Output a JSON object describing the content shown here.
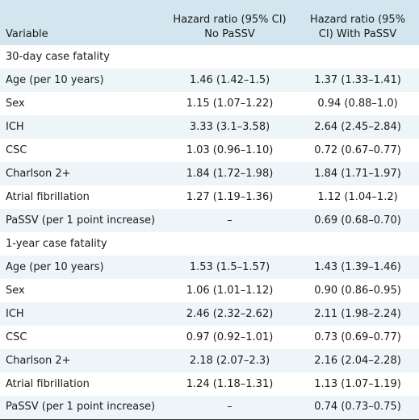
{
  "header": {
    "variable": "Variable",
    "col_no_passv": "Hazard ratio (95% CI) No PaSSV",
    "col_with_passv": "Hazard ratio (95% CI) With PaSSV"
  },
  "sections": [
    {
      "title": "30-day case fatality",
      "rows": [
        {
          "variable": "Age (per 10 years)",
          "no_passv": "1.46 (1.42–1.5)",
          "with_passv": "1.37 (1.33–1.41)"
        },
        {
          "variable": "Sex",
          "no_passv": "1.15 (1.07–1.22)",
          "with_passv": "0.94 (0.88–1.0)"
        },
        {
          "variable": "ICH",
          "no_passv": "3.33 (3.1–3.58)",
          "with_passv": "2.64 (2.45–2.84)"
        },
        {
          "variable": "CSC",
          "no_passv": "1.03 (0.96–1.10)",
          "with_passv": "0.72 (0.67–0.77)"
        },
        {
          "variable": "Charlson 2+",
          "no_passv": "1.84 (1.72–1.98)",
          "with_passv": "1.84 (1.71–1.97)"
        },
        {
          "variable": "Atrial fibrillation",
          "no_passv": "1.27 (1.19–1.36)",
          "with_passv": "1.12 (1.04–1.2)"
        },
        {
          "variable": "PaSSV (per 1 point increase)",
          "no_passv": "–",
          "with_passv": "0.69 (0.68–0.70)"
        }
      ]
    },
    {
      "title": "1-year case fatality",
      "rows": [
        {
          "variable": "Age (per 10 years)",
          "no_passv": "1.53 (1.5–1.57)",
          "with_passv": "1.43 (1.39–1.46)"
        },
        {
          "variable": "Sex",
          "no_passv": "1.06 (1.01–1.12)",
          "with_passv": "0.90 (0.86–0.95)"
        },
        {
          "variable": "ICH",
          "no_passv": "2.46 (2.32–2.62)",
          "with_passv": "2.11 (1.98–2.24)"
        },
        {
          "variable": "CSC",
          "no_passv": "0.97 (0.92–1.01)",
          "with_passv": "0.73 (0.69–0.77)"
        },
        {
          "variable": "Charlson 2+",
          "no_passv": "2.18 (2.07–2.3)",
          "with_passv": "2.16 (2.04–2.28)"
        },
        {
          "variable": "Atrial fibrillation",
          "no_passv": "1.24 (1.18–1.31)",
          "with_passv": "1.13 (1.07–1.19)"
        },
        {
          "variable": "PaSSV (per 1 point increase)",
          "no_passv": "–",
          "with_passv": "0.74 (0.73–0.75)"
        }
      ]
    }
  ],
  "colors": {
    "header_bg": "#d3e6ef",
    "stripe_bg": "#eef5f9",
    "row_bg": "#ffffff"
  }
}
